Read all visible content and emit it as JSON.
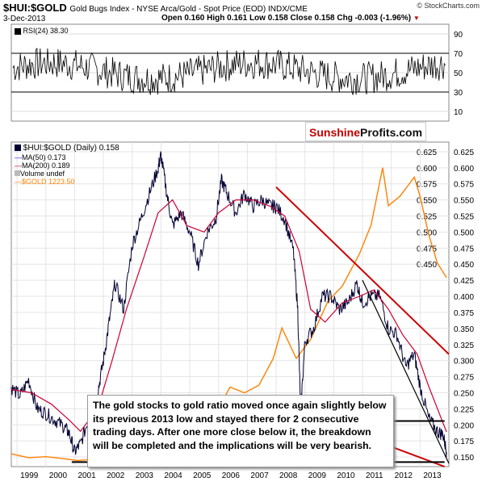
{
  "header": {
    "symbol": "$HUI:$GOLD",
    "description": "Gold Bugs Index - NYSE Arca/Gold - Spot Price (EOD) INDX/CME",
    "date": "3-Dec-2013",
    "open": "Open 0.160",
    "high": "High 0.161",
    "low": "Low 0.158",
    "close": "Close 0.158",
    "chg": "Chg -0.003 (-1.96%)",
    "chg_marker": "▼",
    "copyright": "© StockCharts.com"
  },
  "rsi_panel": {
    "label": "RSI(24) 38.30",
    "ticks": [
      "90",
      "70",
      "50",
      "30",
      "10"
    ]
  },
  "logo": {
    "part1": "Sunshine",
    "part2": "Profits.com"
  },
  "legend": {
    "main": "$HUI:$GOLD (Daily) 0.158",
    "ma50": "MA(50) 0.173",
    "ma200": "MA(200) 0.189",
    "volume": "Volume undef",
    "gold": "$GOLD 1223.50"
  },
  "annotation": "The gold stocks to gold ratio moved once again slightly below its previous 2013 low and stayed there for 2 consecutive trading days. After one more close below it, the breakdown will be completed and the implications will be very bearish.",
  "colors": {
    "ratio": "#000033",
    "ma50": "#1a1aff",
    "ma200": "#cc0033",
    "gold": "#ff8000",
    "trendline": "#cc0000",
    "support": "#000000"
  },
  "chart_data": {
    "type": "line",
    "x_ticks": [
      "1999",
      "2000",
      "2001",
      "2002",
      "2003",
      "2004",
      "2005",
      "2006",
      "2007",
      "2008",
      "2009",
      "2010",
      "2011",
      "2012",
      "2013"
    ],
    "y_ticks_left_gold": [
      "0.625",
      "0.600",
      "0.575",
      "0.550",
      "0.525",
      "0.500",
      "0.475",
      "0.450",
      "0.425",
      "0.400",
      "0.375",
      "0.350",
      "0.325",
      "0.300",
      "0.275",
      "0.250",
      "0.225",
      "0.200",
      "0.175",
      "0.150"
    ],
    "y_ticks_right": [
      "0.625",
      "0.600",
      "0.575",
      "0.550",
      "0.525",
      "0.500",
      "0.475",
      "0.450",
      "0.425",
      "0.400",
      "0.375",
      "0.350",
      "0.325",
      "0.300",
      "0.275",
      "0.250",
      "0.225",
      "0.200",
      "0.175",
      "0.150"
    ],
    "ylim": [
      0.135,
      0.64
    ],
    "xlim": [
      1998.8,
      2014.0
    ],
    "series": [
      {
        "name": "$HUI:$GOLD",
        "x": [
          1998.8,
          1999.1,
          1999.4,
          1999.7,
          2000.0,
          2000.3,
          2000.6,
          2000.8,
          2001.0,
          2001.2,
          2001.5,
          2001.8,
          2002.0,
          2002.2,
          2002.4,
          2002.7,
          2003.0,
          2003.3,
          2003.6,
          2003.9,
          2004.0,
          2004.2,
          2004.4,
          2004.7,
          2005.0,
          2005.3,
          2005.6,
          2005.9,
          2006.1,
          2006.3,
          2006.6,
          2006.9,
          2007.2,
          2007.5,
          2007.8,
          2008.0,
          2008.3,
          2008.6,
          2008.75,
          2008.85,
          2009.0,
          2009.3,
          2009.6,
          2009.9,
          2010.2,
          2010.5,
          2010.8,
          2011.0,
          2011.3,
          2011.6,
          2011.9,
          2012.2,
          2012.5,
          2012.8,
          2013.0,
          2013.3,
          2013.6,
          2013.8,
          2013.92
        ],
        "values": [
          0.258,
          0.245,
          0.27,
          0.225,
          0.218,
          0.208,
          0.198,
          0.188,
          0.158,
          0.17,
          0.21,
          0.25,
          0.3,
          0.36,
          0.42,
          0.38,
          0.48,
          0.52,
          0.56,
          0.6,
          0.62,
          0.56,
          0.51,
          0.53,
          0.5,
          0.45,
          0.5,
          0.52,
          0.58,
          0.56,
          0.53,
          0.56,
          0.54,
          0.55,
          0.54,
          0.54,
          0.52,
          0.47,
          0.38,
          0.22,
          0.33,
          0.35,
          0.4,
          0.4,
          0.38,
          0.39,
          0.42,
          0.39,
          0.4,
          0.4,
          0.35,
          0.34,
          0.29,
          0.31,
          0.26,
          0.21,
          0.19,
          0.185,
          0.158
        ]
      },
      {
        "name": "MA(200)",
        "x": [
          1998.8,
          1999.5,
          2000.2,
          2000.8,
          2001.2,
          2001.8,
          2002.3,
          2002.8,
          2003.4,
          2003.9,
          2004.4,
          2004.9,
          2005.5,
          2006.0,
          2006.6,
          2007.2,
          2007.8,
          2008.3,
          2008.8,
          2009.2,
          2009.7,
          2010.3,
          2010.9,
          2011.4,
          2011.9,
          2012.4,
          2012.9,
          2013.3,
          2013.92
        ],
        "values": [
          0.255,
          0.25,
          0.232,
          0.208,
          0.19,
          0.225,
          0.3,
          0.38,
          0.46,
          0.53,
          0.55,
          0.51,
          0.5,
          0.53,
          0.55,
          0.55,
          0.54,
          0.525,
          0.47,
          0.38,
          0.36,
          0.39,
          0.4,
          0.41,
          0.38,
          0.34,
          0.31,
          0.26,
          0.189
        ]
      },
      {
        "name": "$GOLD",
        "x": [
          1998.8,
          1999.4,
          2000.0,
          2000.6,
          2001.1,
          2001.5,
          2002.0,
          2002.5,
          2003.0,
          2003.5,
          2004.0,
          2004.5,
          2005.0,
          2005.5,
          2006.0,
          2006.4,
          2006.9,
          2007.4,
          2007.9,
          2008.2,
          2008.7,
          2009.2,
          2009.8,
          2010.3,
          2010.9,
          2011.3,
          2011.7,
          2011.9,
          2012.3,
          2012.8,
          2013.0,
          2013.3,
          2013.6,
          2013.92
        ],
        "values": [
          300,
          280,
          285,
          275,
          265,
          270,
          300,
          320,
          350,
          360,
          400,
          395,
          430,
          440,
          540,
          650,
          620,
          660,
          800,
          960,
          800,
          900,
          1100,
          1180,
          1350,
          1500,
          1800,
          1600,
          1650,
          1750,
          1650,
          1450,
          1300,
          1223.5
        ]
      }
    ],
    "rsi": {
      "ylim": [
        0,
        100
      ],
      "levels": [
        70,
        30
      ]
    }
  }
}
